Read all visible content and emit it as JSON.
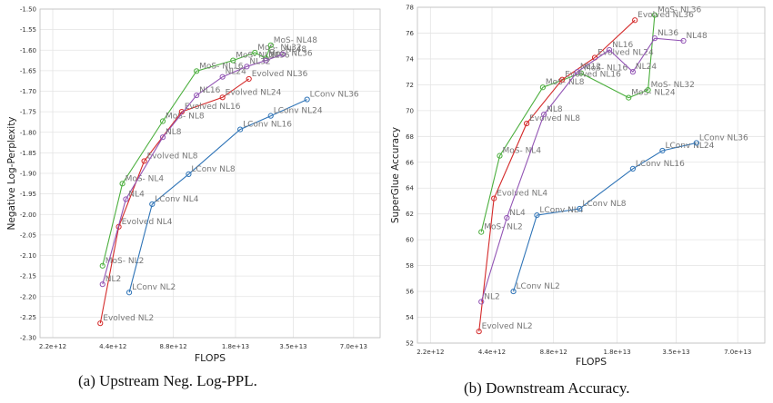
{
  "captions": [
    "(a) Upstream Neg. Log-PPL.",
    "(b) Downstream Accuracy."
  ],
  "colors": {
    "MoS": "#4caf3e",
    "Evolved": "#d42a2a",
    "NL": "#9254b4",
    "LConv": "#2f74b7"
  },
  "chart_data": [
    {
      "type": "line",
      "xlabel": "FLOPS",
      "ylabel": "Negative Log-Perplexity",
      "x_scale": "log",
      "xlim": [
        1900000000000.0,
        95000000000000.0
      ],
      "ylim": [
        -2.3,
        -1.5
      ],
      "x_ticks": [
        2200000000000.0,
        4400000000000.0,
        8800000000000.0,
        18000000000000.0,
        35000000000000.0,
        70000000000000.0
      ],
      "x_tick_labels": [
        "2.2e+12",
        "4.4e+12",
        "8.8e+12",
        "1.8e+13",
        "3.5e+13",
        "7.0e+13"
      ],
      "y_ticks": [
        -1.5,
        -1.55,
        -1.6,
        -1.65,
        -1.7,
        -1.75,
        -1.8,
        -1.85,
        -1.9,
        -1.95,
        -2.0,
        -2.05,
        -2.1,
        -2.15,
        -2.2,
        -2.25,
        -2.3
      ],
      "y_tick_labels": [
        "-1.50",
        "-1.55",
        "-1.60",
        "-1.65",
        "-1.70",
        "-1.75",
        "-1.80",
        "-1.85",
        "-1.90",
        "-1.95",
        "-2.00",
        "-2.05",
        "-2.10",
        "-2.15",
        "-2.20",
        "-2.25",
        "-2.30"
      ],
      "grid": true,
      "series": [
        {
          "family": "MoS",
          "x": [
            3900000000000.0,
            4900000000000.0,
            7800000000000.0,
            11500000000000.0,
            17500000000000.0,
            22500000000000.0,
            25500000000000.0,
            27000000000000.0
          ],
          "y": [
            -2.125,
            -1.925,
            -1.773,
            -1.651,
            -1.625,
            -1.606,
            -1.62,
            -1.588
          ],
          "point_labels": [
            "MoS- NL2",
            "MoS- NL4",
            "MoS- NL8",
            "MoS- NL16",
            "MoS- NL24",
            "MoS- NL32",
            "MoS- NL36",
            "MoS- NL48"
          ]
        },
        {
          "family": "Evolved",
          "x": [
            3800000000000.0,
            4700000000000.0,
            6300000000000.0,
            9700000000000.0,
            15500000000000.0,
            21000000000000.0
          ],
          "y": [
            -2.265,
            -2.03,
            -1.87,
            -1.75,
            -1.715,
            -1.67
          ],
          "point_labels": [
            "Evolved NL2",
            "Evolved NL4",
            "Evolved NL8",
            "Evolved NL16",
            "Evolved NL24",
            "Evolved NL36"
          ]
        },
        {
          "family": "NL",
          "x": [
            3900000000000.0,
            5100000000000.0,
            7800000000000.0,
            11500000000000.0,
            15500000000000.0,
            20500000000000.0,
            25500000000000.0,
            31000000000000.0
          ],
          "y": [
            -2.17,
            -1.963,
            -1.812,
            -1.71,
            -1.665,
            -1.64,
            -1.625,
            -1.61
          ],
          "point_labels": [
            "NL2",
            "NL4",
            "NL8",
            "NL16",
            "NL24",
            "NL32",
            "NL36",
            "NL48"
          ]
        },
        {
          "family": "LConv",
          "x": [
            5300000000000.0,
            6900000000000.0,
            10500000000000.0,
            19000000000000.0,
            27000000000000.0,
            41000000000000.0
          ],
          "y": [
            -2.19,
            -1.975,
            -1.902,
            -1.793,
            -1.76,
            -1.72
          ],
          "point_labels": [
            "LConv NL2",
            "LConv NL4",
            "LConv NL8",
            "LConv NL16",
            "LConv NL24",
            "LConv NL36"
          ]
        }
      ]
    },
    {
      "type": "line",
      "xlabel": "FLOPS",
      "ylabel": "SuperGlue Accuracy",
      "x_scale": "log",
      "xlim": [
        1900000000000.0,
        95000000000000.0
      ],
      "ylim": [
        52,
        78
      ],
      "x_ticks": [
        2200000000000.0,
        4400000000000.0,
        8800000000000.0,
        18000000000000.0,
        35000000000000.0,
        70000000000000.0
      ],
      "x_tick_labels": [
        "2.2e+12",
        "4.4e+12",
        "8.8e+12",
        "1.8e+13",
        "3.5e+13",
        "7.0e+13"
      ],
      "y_ticks": [
        52,
        54,
        56,
        58,
        60,
        62,
        64,
        66,
        68,
        70,
        72,
        74,
        76,
        78
      ],
      "y_tick_labels": [
        "52",
        "54",
        "56",
        "58",
        "60",
        "62",
        "64",
        "66",
        "68",
        "70",
        "72",
        "74",
        "76",
        "78"
      ],
      "grid": true,
      "series": [
        {
          "family": "MoS",
          "x": [
            3900000000000.0,
            4800000000000.0,
            7800000000000.0,
            12000000000000.0,
            20500000000000.0,
            25500000000000.0,
            27500000000000.0
          ],
          "y": [
            60.6,
            66.5,
            71.8,
            72.9,
            71.0,
            71.6,
            77.4
          ],
          "point_labels": [
            "MoS- NL2",
            "MoS- NL4",
            "MoS- NL8",
            "MoS- NL16",
            "MoS- NL24",
            "MoS- NL32",
            "MoS- NL36"
          ]
        },
        {
          "family": "Evolved",
          "x": [
            3800000000000.0,
            4500000000000.0,
            6500000000000.0,
            9700000000000.0,
            14000000000000.0,
            22000000000000.0
          ],
          "y": [
            52.9,
            63.2,
            69.0,
            72.4,
            74.1,
            77.0
          ],
          "point_labels": [
            "Evolved NL2",
            "Evolved NL4",
            "Evolved NL8",
            "Evolved NL16",
            "Evolved NL24",
            "Evolved NL36"
          ]
        },
        {
          "family": "NL",
          "x": [
            3900000000000.0,
            5200000000000.0,
            7900000000000.0,
            11500000000000.0,
            16500000000000.0,
            21500000000000.0,
            27500000000000.0,
            38000000000000.0
          ],
          "y": [
            55.2,
            61.7,
            69.7,
            73.0,
            74.7,
            73.0,
            75.6,
            75.4
          ],
          "point_labels": [
            "NL2",
            "NL4",
            "NL8",
            "NL12",
            "NL16",
            "NL24",
            "NL36",
            "NL48"
          ]
        },
        {
          "family": "LConv",
          "x": [
            5600000000000.0,
            7300000000000.0,
            11800000000000.0,
            21500000000000.0,
            30000000000000.0,
            44000000000000.0
          ],
          "y": [
            56.0,
            61.9,
            62.4,
            65.5,
            66.9,
            67.5
          ],
          "point_labels": [
            "LConv NL2",
            "LConv NL4",
            "LConv NL8",
            "LConv NL16",
            "LConv NL24",
            "LConv NL36"
          ]
        }
      ]
    }
  ]
}
